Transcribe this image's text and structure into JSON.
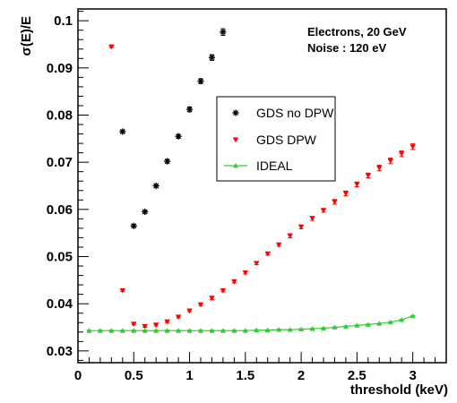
{
  "chart_data": {
    "type": "scatter",
    "xlabel": "threshold (keV)",
    "ylabel": "σ(E)/E",
    "xlim": [
      0,
      3.3
    ],
    "ylim": [
      0.0275,
      0.1025
    ],
    "x_ticks": [
      "0",
      "0.5",
      "1",
      "1.5",
      "2",
      "2.5",
      "3"
    ],
    "y_ticks": [
      "0.03",
      "0.04",
      "0.05",
      "0.06",
      "0.07",
      "0.08",
      "0.09",
      "0.1"
    ],
    "annotations": [
      "Electrons, 20 GeV",
      "Noise : 120 eV"
    ],
    "legend_position": "center-right",
    "grid": false,
    "series": [
      {
        "name": "GDS no DPW",
        "marker": "asterisk",
        "color": "#000000",
        "x": [
          0.4,
          0.5,
          0.6,
          0.7,
          0.8,
          0.9,
          1.0,
          1.1,
          1.2,
          1.3
        ],
        "y": [
          0.0765,
          0.0565,
          0.0595,
          0.065,
          0.0702,
          0.0755,
          0.0812,
          0.0872,
          0.0922,
          0.0976
        ],
        "err": [
          0.0003,
          0.0003,
          0.0003,
          0.0003,
          0.0004,
          0.0004,
          0.0005,
          0.0005,
          0.0006,
          0.0007
        ]
      },
      {
        "name": "GDS DPW",
        "marker": "triangle-down",
        "color": "#ff0000",
        "x": [
          0.3,
          0.4,
          0.5,
          0.6,
          0.7,
          0.8,
          0.9,
          1.0,
          1.1,
          1.2,
          1.3,
          1.4,
          1.5,
          1.6,
          1.7,
          1.8,
          1.9,
          2.0,
          2.1,
          2.2,
          2.3,
          2.4,
          2.5,
          2.6,
          2.7,
          2.8,
          2.9,
          3.0
        ],
        "y": [
          0.0945,
          0.0428,
          0.0357,
          0.0352,
          0.0355,
          0.0362,
          0.0372,
          0.0385,
          0.0398,
          0.0412,
          0.0428,
          0.0447,
          0.0466,
          0.0486,
          0.0506,
          0.0525,
          0.0544,
          0.0563,
          0.0581,
          0.0598,
          0.0616,
          0.0634,
          0.0653,
          0.0672,
          0.0688,
          0.0703,
          0.0718,
          0.0733
        ],
        "err": [
          0.0002,
          0.0002,
          0.0002,
          0.0002,
          0.0002,
          0.0002,
          0.0002,
          0.0002,
          0.0002,
          0.0003,
          0.0003,
          0.0003,
          0.0003,
          0.0003,
          0.0003,
          0.0003,
          0.0004,
          0.0004,
          0.0004,
          0.0004,
          0.0005,
          0.0005,
          0.0005,
          0.0005,
          0.0006,
          0.0006,
          0.0006,
          0.0006
        ]
      },
      {
        "name": "IDEAL",
        "marker": "triangle-up",
        "color": "#33cc33",
        "x": [
          0.1,
          0.2,
          0.3,
          0.4,
          0.5,
          0.6,
          0.7,
          0.8,
          0.9,
          1.0,
          1.1,
          1.2,
          1.3,
          1.4,
          1.5,
          1.6,
          1.7,
          1.8,
          1.9,
          2.0,
          2.1,
          2.2,
          2.3,
          2.4,
          2.5,
          2.6,
          2.7,
          2.8,
          2.9,
          3.0
        ],
        "y": [
          0.0343,
          0.0343,
          0.0343,
          0.0343,
          0.0343,
          0.0343,
          0.0343,
          0.0343,
          0.0343,
          0.0343,
          0.0343,
          0.0343,
          0.0343,
          0.0343,
          0.0343,
          0.0344,
          0.0344,
          0.0345,
          0.0345,
          0.0346,
          0.0347,
          0.0348,
          0.035,
          0.0352,
          0.0354,
          0.0356,
          0.0358,
          0.0361,
          0.0366,
          0.0374
        ],
        "err": [
          0.0001,
          0.0001,
          0.0001,
          0.0001,
          0.0001,
          0.0001,
          0.0001,
          0.0001,
          0.0001,
          0.0001,
          0.0001,
          0.0001,
          0.0001,
          0.0001,
          0.0001,
          0.0001,
          0.0001,
          0.0001,
          0.0001,
          0.0001,
          0.0001,
          0.0001,
          0.0001,
          0.0001,
          0.0001,
          0.0001,
          0.0001,
          0.0001,
          0.0001,
          0.0001
        ]
      }
    ]
  }
}
